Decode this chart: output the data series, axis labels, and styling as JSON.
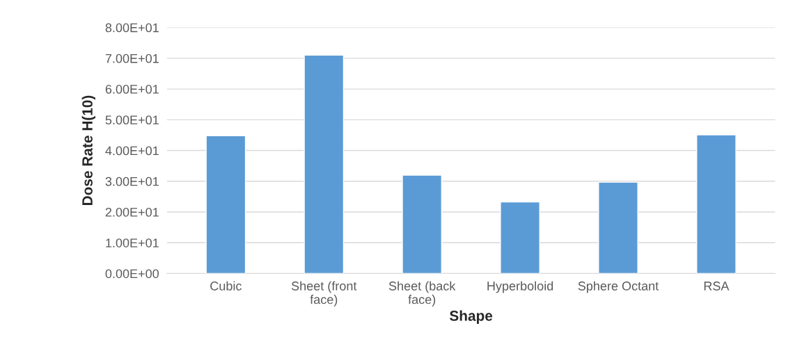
{
  "chart_data": {
    "type": "bar",
    "xlabel": "Shape",
    "ylabel": "Dose Rate H(10)",
    "categories": [
      "Cubic",
      "Sheet (front\nface)",
      "Sheet (back\nface)",
      "Hyperboloid",
      "Sphere Octant",
      "RSA"
    ],
    "values": [
      44.8,
      71.0,
      32.0,
      23.3,
      29.7,
      45.1
    ],
    "color": "#5b9bd5",
    "ylim": [
      0,
      80
    ],
    "yticks": [
      {
        "value": 0,
        "label": "0.00E+00"
      },
      {
        "value": 10,
        "label": "1.00E+01"
      },
      {
        "value": 20,
        "label": "2.00E+01"
      },
      {
        "value": 30,
        "label": "3.00E+01"
      },
      {
        "value": 40,
        "label": "4.00E+01"
      },
      {
        "value": 50,
        "label": "5.00E+01"
      },
      {
        "value": 60,
        "label": "6.00E+01"
      },
      {
        "value": 70,
        "label": "7.00E+01"
      },
      {
        "value": 80,
        "label": "8.00E+01"
      }
    ],
    "grid": "y"
  }
}
